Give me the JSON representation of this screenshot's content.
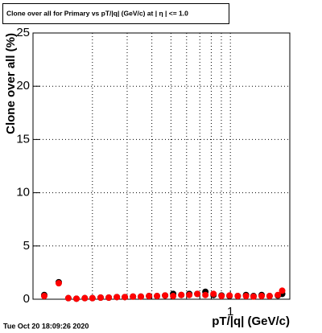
{
  "chart_data": {
    "type": "scatter",
    "title": "Clone  over all for Primary vs pT/|q| (GeV/c) at | η | <= 1.0",
    "y_label": "Clone  over all (%)",
    "x_label": "pT/|q| (GeV/c)",
    "footer": "Tue Oct 20 18:09:26 2020",
    "log_x": true,
    "grid": true,
    "xlim": [
      0.1,
      2
    ],
    "ylim": [
      0,
      25
    ],
    "xticks": [
      1
    ],
    "xgrid": [
      0.2,
      0.3,
      0.4,
      0.5,
      0.6,
      0.7,
      0.8,
      0.9,
      1
    ],
    "yticks": [
      0,
      5,
      10,
      15,
      20,
      25
    ],
    "x": [
      0.114,
      0.135,
      0.151,
      0.166,
      0.183,
      0.2,
      0.22,
      0.242,
      0.266,
      0.292,
      0.321,
      0.352,
      0.387,
      0.425,
      0.467,
      0.513,
      0.564,
      0.619,
      0.68,
      0.747,
      0.821,
      0.902,
      0.99,
      1.09,
      1.2,
      1.31,
      1.44,
      1.58,
      1.74,
      1.83
    ],
    "series": [
      {
        "name": "black",
        "color": "#000000",
        "values": [
          0.4,
          1.6,
          0.1,
          0.05,
          0.1,
          0.1,
          0.15,
          0.15,
          0.2,
          0.2,
          0.25,
          0.25,
          0.3,
          0.3,
          0.35,
          0.5,
          0.4,
          0.5,
          0.5,
          0.7,
          0.4,
          0.35,
          0.3,
          0.3,
          0.4,
          0.3,
          0.4,
          0.3,
          0.35,
          0.5
        ]
      },
      {
        "name": "red",
        "color": "#ff0000",
        "values": [
          0.3,
          1.5,
          0.1,
          0.05,
          0.1,
          0.1,
          0.15,
          0.15,
          0.2,
          0.2,
          0.25,
          0.25,
          0.3,
          0.3,
          0.35,
          0.3,
          0.4,
          0.4,
          0.5,
          0.4,
          0.5,
          0.3,
          0.35,
          0.3,
          0.3,
          0.25,
          0.3,
          0.3,
          0.4,
          0.8
        ]
      }
    ]
  }
}
